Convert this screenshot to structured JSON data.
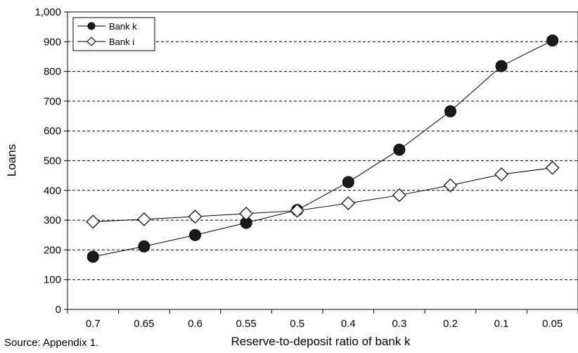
{
  "chart_data": {
    "type": "line",
    "title": "",
    "xlabel": "Reserve-to-deposit ratio of bank k",
    "ylabel": "Loans",
    "categories": [
      "0.7",
      "0.65",
      "0.6",
      "0.55",
      "0.5",
      "0.4",
      "0.3",
      "0.2",
      "0.1",
      "0.05"
    ],
    "ylim": [
      0,
      1000
    ],
    "yticks": [
      "0",
      "100",
      "200",
      "300",
      "400",
      "500",
      "600",
      "700",
      "800",
      "900",
      "1,000"
    ],
    "grid": "horizontal dashed",
    "legend_position": "top-left",
    "series": [
      {
        "name": "Bank k",
        "marker": "filled-circle",
        "color": "#000000",
        "values": [
          177,
          212,
          250,
          291,
          334,
          428,
          537,
          666,
          818,
          904
        ]
      },
      {
        "name": "Bank i",
        "marker": "open-diamond",
        "color": "#000000",
        "values": [
          295,
          303,
          312,
          322,
          332,
          357,
          384,
          417,
          454,
          476
        ]
      }
    ]
  },
  "source_note": "Source: Appendix 1."
}
